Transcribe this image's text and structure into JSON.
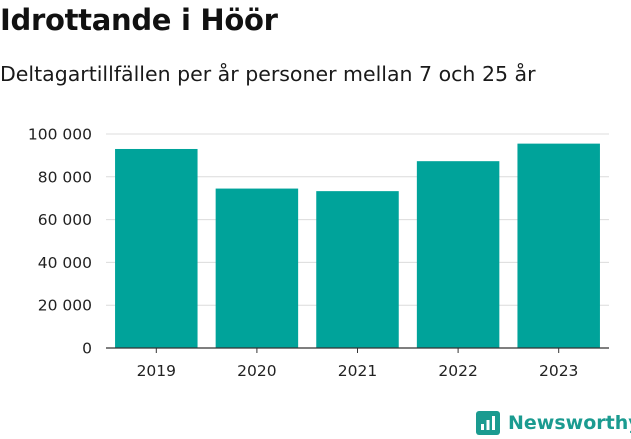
{
  "header": {
    "title": "Idrottande i Höör",
    "subtitle": "Deltagartillfällen per år personer mellan 7 och 25 år"
  },
  "brand": {
    "name": "Newsworthy",
    "icon": "bar-chart-logo-icon",
    "color": "#1b9b90"
  },
  "chart_data": {
    "type": "bar",
    "categories": [
      "2019",
      "2020",
      "2021",
      "2022",
      "2023"
    ],
    "values": [
      93000,
      74500,
      73300,
      87300,
      95500
    ],
    "ylim": [
      0,
      100000
    ],
    "yticks": [
      0,
      20000,
      40000,
      60000,
      80000,
      100000
    ],
    "ytick_labels": [
      "0",
      "20 000",
      "40 000",
      "60 000",
      "80 000",
      "100 000"
    ],
    "bar_color": "#00a39a",
    "grid": true,
    "legend": "none"
  }
}
